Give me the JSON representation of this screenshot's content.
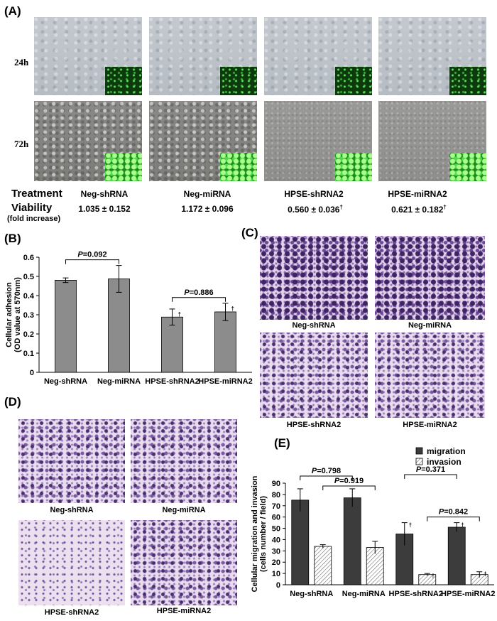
{
  "panel_a": {
    "label": "(A)",
    "row_24h": "24h",
    "row_72h": "72h",
    "treatment_label": "Treatment",
    "viability_label": "Viability",
    "viability_sub": "(fold increase)",
    "groups": [
      "Neg-shRNA",
      "Neg-miRNA",
      "HPSE-shRNA2",
      "HPSE-miRNA2"
    ],
    "viability": [
      "1.035 ± 0.152",
      "1.172 ± 0.096",
      "0.560 ± 0.036",
      "0.621 ±  0.182"
    ],
    "dagger": "†"
  },
  "panel_c": {
    "label": "(C)",
    "captions": [
      "Neg-shRNA",
      "Neg-miRNA",
      "HPSE-shRNA2",
      "HPSE-miRNA2"
    ]
  },
  "panel_d": {
    "label": "(D)",
    "captions": [
      "Neg-shRNA",
      "Neg-miRNA",
      "HPSE-shRNA2",
      "HPSE-miRNA2"
    ]
  },
  "chart_data": [
    {
      "panel": "(B)",
      "type": "bar",
      "ylabel": "Cellular adhesion\n(OD value at 570nm)",
      "categories": [
        "Neg-shRNA",
        "Neg-miRNA",
        "HPSE-shRNA2",
        "HPSE-miRNA2"
      ],
      "values": [
        0.48,
        0.487,
        0.288,
        0.315
      ],
      "errors": [
        0.012,
        0.07,
        0.042,
        0.045
      ],
      "significant": [
        false,
        false,
        true,
        true
      ],
      "ylim": [
        0,
        0.6
      ],
      "yticks": [
        "0",
        "0.1",
        "0.2",
        "0.3",
        "0.4",
        "0.5",
        "0.6"
      ],
      "bar_color": "#8c8c8c",
      "annotations": [
        {
          "p_label": "P",
          "p_value": "=0.092",
          "between": [
            0,
            1
          ]
        },
        {
          "p_label": "P",
          "p_value": "=0.886",
          "between": [
            2,
            3
          ]
        }
      ]
    },
    {
      "panel": "(E)",
      "type": "bar",
      "ylabel": "Cellular migration and invasion\n(cells number / field)",
      "categories": [
        "Neg-shRNA",
        "Neg-miRNA",
        "HPSE-shRNA2",
        "HPSE-miRNA2"
      ],
      "series": [
        {
          "name": "migration",
          "values": [
            75,
            77,
            45,
            51
          ],
          "errors": [
            10,
            8,
            10,
            4
          ],
          "color": "#3c3c3c"
        },
        {
          "name": "invasion",
          "values": [
            34,
            33,
            9,
            9
          ],
          "errors": [
            1.5,
            5.5,
            1,
            2.5
          ],
          "color": "hatch"
        }
      ],
      "significant_groups": [
        2,
        3
      ],
      "ylim": [
        0,
        90
      ],
      "yticks": [
        "0",
        "10",
        "20",
        "30",
        "40",
        "50",
        "60",
        "70",
        "80",
        "90"
      ],
      "legend_position": "top-right",
      "annotations": [
        {
          "p_label": "P",
          "p_value": "=0.798",
          "between": [
            "migration-0",
            "migration-1"
          ]
        },
        {
          "p_label": "P",
          "p_value": "=0.919",
          "between": [
            "invasion-0",
            "invasion-1"
          ]
        },
        {
          "p_label": "P",
          "p_value": "=0.371",
          "between": [
            "migration-2",
            "migration-3"
          ]
        },
        {
          "p_label": "P",
          "p_value": "=0.842",
          "between": [
            "invasion-2",
            "invasion-3"
          ]
        }
      ]
    }
  ]
}
